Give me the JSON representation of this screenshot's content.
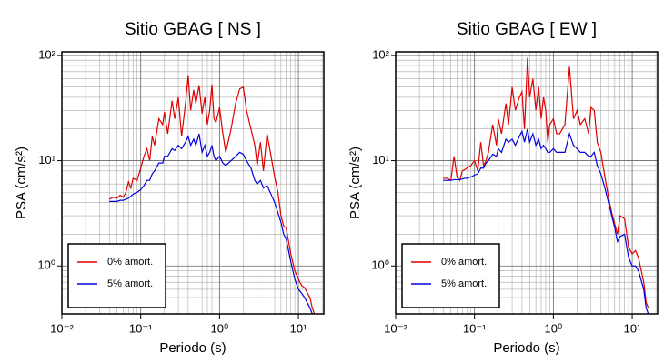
{
  "chart_data": [
    {
      "type": "line",
      "title": "Sitio GBAG [ NS ]",
      "xlabel": "Periodo (s)",
      "ylabel": "PSA (cm/s²)",
      "xscale": "log",
      "yscale": "log",
      "grid": true,
      "legend": "lower left",
      "xlim": [
        0.01,
        21
      ],
      "ylim": [
        0.35,
        108
      ],
      "xticks": [
        {
          "value": 0.01,
          "label": "10⁻²"
        },
        {
          "value": 0.1,
          "label": "10⁻¹"
        },
        {
          "value": 1,
          "label": "10⁰"
        },
        {
          "value": 10,
          "label": "10¹"
        }
      ],
      "yticks": [
        {
          "value": 1,
          "label": "10⁰"
        },
        {
          "value": 10,
          "label": "10¹"
        },
        {
          "value": 100,
          "label": "10²"
        }
      ],
      "x": [
        0.04,
        0.045,
        0.05,
        0.055,
        0.06,
        0.065,
        0.07,
        0.075,
        0.08,
        0.09,
        0.1,
        0.11,
        0.12,
        0.13,
        0.14,
        0.15,
        0.17,
        0.19,
        0.2,
        0.22,
        0.25,
        0.27,
        0.3,
        0.33,
        0.37,
        0.4,
        0.43,
        0.47,
        0.5,
        0.55,
        0.6,
        0.65,
        0.7,
        0.75,
        0.8,
        0.85,
        0.9,
        1.0,
        1.1,
        1.2,
        1.4,
        1.6,
        1.8,
        2.0,
        2.2,
        2.5,
        2.8,
        3.0,
        3.3,
        3.6,
        4.0,
        4.5,
        5.0,
        5.5,
        6.0,
        6.5,
        7.0,
        8.0,
        9.0,
        10,
        11,
        12,
        14,
        15,
        16
      ],
      "series": [
        {
          "name": "0% amort.",
          "color": "#e00000",
          "values": [
            4.3,
            4.5,
            4.4,
            4.7,
            4.5,
            5.0,
            6.3,
            5.5,
            6.8,
            6.5,
            8.5,
            11,
            13,
            10,
            17,
            14,
            25,
            22,
            29,
            18,
            37,
            25,
            40,
            17,
            35,
            65,
            30,
            47,
            35,
            52,
            28,
            40,
            22,
            30,
            53,
            25,
            23,
            32,
            18,
            12,
            20,
            35,
            48,
            50,
            30,
            20,
            14,
            9,
            15,
            8,
            18,
            11,
            7,
            5,
            3,
            2.4,
            2.3,
            1.3,
            0.9,
            0.75,
            0.65,
            0.62,
            0.5,
            0.4,
            0.35
          ]
        },
        {
          "name": "5% amort.",
          "color": "#0000e0",
          "values": [
            4.1,
            4.1,
            4.1,
            4.2,
            4.2,
            4.3,
            4.4,
            4.6,
            4.8,
            5.0,
            5.3,
            5.8,
            6.5,
            6.5,
            7.5,
            8,
            9.5,
            9.5,
            11,
            11,
            13,
            12.5,
            14,
            13,
            15,
            17,
            14,
            16,
            14,
            18,
            12,
            14,
            11,
            12,
            14,
            11,
            10,
            11,
            9.5,
            9.0,
            10,
            11,
            12,
            11.5,
            10,
            8.5,
            6.5,
            6.0,
            6.5,
            5.5,
            5.8,
            4.8,
            4.0,
            3.2,
            2.6,
            2.0,
            1.8,
            1.1,
            0.75,
            0.6,
            0.55,
            0.5,
            0.4,
            0.35,
            0.32
          ]
        }
      ]
    },
    {
      "type": "line",
      "title": "Sitio GBAG [ EW ]",
      "xlabel": "Periodo (s)",
      "ylabel": "PSA (cm/s²)",
      "xscale": "log",
      "yscale": "log",
      "grid": true,
      "legend": "lower left",
      "xlim": [
        0.01,
        21
      ],
      "ylim": [
        0.35,
        108
      ],
      "xticks": [
        {
          "value": 0.01,
          "label": "10⁻²"
        },
        {
          "value": 0.1,
          "label": "10⁻¹"
        },
        {
          "value": 1,
          "label": "10⁰"
        },
        {
          "value": 10,
          "label": "10¹"
        }
      ],
      "yticks": [
        {
          "value": 1,
          "label": "10⁰"
        },
        {
          "value": 10,
          "label": "10¹"
        },
        {
          "value": 100,
          "label": "10²"
        }
      ],
      "x": [
        0.04,
        0.045,
        0.05,
        0.055,
        0.06,
        0.065,
        0.07,
        0.075,
        0.08,
        0.09,
        0.1,
        0.11,
        0.12,
        0.13,
        0.14,
        0.15,
        0.17,
        0.19,
        0.2,
        0.22,
        0.25,
        0.27,
        0.3,
        0.33,
        0.37,
        0.4,
        0.43,
        0.47,
        0.5,
        0.55,
        0.6,
        0.65,
        0.7,
        0.75,
        0.8,
        0.85,
        0.9,
        1.0,
        1.1,
        1.2,
        1.4,
        1.6,
        1.8,
        2.0,
        2.2,
        2.5,
        2.8,
        3.0,
        3.3,
        3.6,
        4.0,
        4.5,
        5.0,
        5.5,
        6.0,
        6.5,
        7.0,
        8.0,
        9.0,
        10,
        11,
        12,
        14,
        15,
        16
      ],
      "series": [
        {
          "name": "0% amort.",
          "color": "#e00000",
          "values": [
            6.8,
            6.8,
            6.5,
            11,
            7,
            6.5,
            8,
            8.2,
            8.5,
            9,
            10,
            8,
            15,
            9,
            10,
            12,
            22,
            14,
            25,
            18,
            35,
            22,
            50,
            30,
            40,
            45,
            20,
            95,
            40,
            60,
            30,
            50,
            25,
            40,
            30,
            15,
            22,
            25,
            18,
            18,
            22,
            78,
            25,
            30,
            22,
            25,
            18,
            32,
            30,
            15,
            12,
            7,
            4.5,
            3.2,
            2.5,
            2.0,
            3.0,
            2.8,
            1.5,
            1.3,
            1.4,
            1.2,
            0.7,
            0.45,
            0.4
          ]
        },
        {
          "name": "5% amort.",
          "color": "#0000e0",
          "values": [
            6.5,
            6.5,
            6.5,
            6.6,
            6.6,
            6.6,
            6.7,
            6.8,
            6.8,
            7,
            7.3,
            7.5,
            8.5,
            8.5,
            9.5,
            10,
            11.5,
            11,
            13,
            12,
            16,
            15,
            16,
            14,
            17,
            19,
            15,
            20,
            15,
            18,
            14,
            16,
            13,
            14,
            13,
            12,
            12,
            13,
            12,
            12,
            12,
            18,
            14,
            13,
            12,
            12,
            11,
            11,
            12,
            9,
            7.5,
            5.5,
            4.0,
            3.0,
            2.3,
            1.7,
            1.9,
            2.0,
            1.2,
            1.0,
            1.0,
            0.9,
            0.6,
            0.4,
            0.35
          ]
        }
      ]
    }
  ]
}
